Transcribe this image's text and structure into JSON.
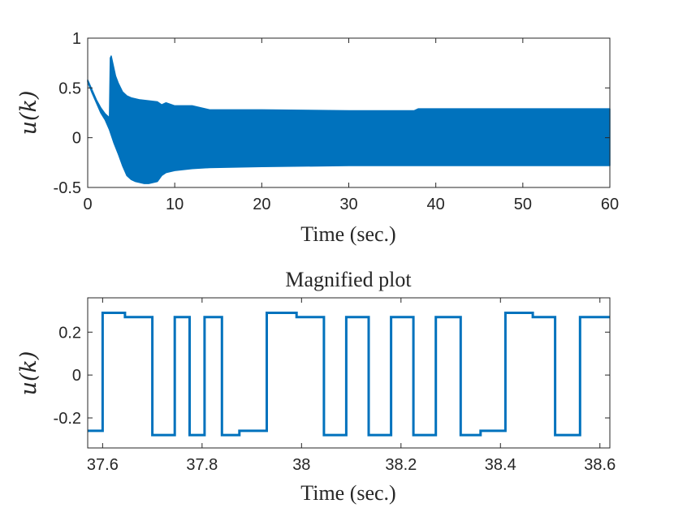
{
  "chart_data": [
    {
      "type": "line",
      "title": "",
      "xlabel": "Time (sec.)",
      "ylabel": "u(k)",
      "xlim": [
        0,
        60
      ],
      "ylim": [
        -0.5,
        1
      ],
      "xticks": [
        0,
        10,
        20,
        30,
        40,
        50,
        60
      ],
      "xtick_labels": [
        "0",
        "10",
        "20",
        "30",
        "40",
        "50",
        "60"
      ],
      "yticks": [
        1,
        0.5,
        0,
        -0.5
      ],
      "ytick_labels": [
        "1",
        "0.5",
        "0",
        "-0.5"
      ],
      "color": "#0072BD",
      "grid": false,
      "series": [
        {
          "envelope_upper": {
            "x": [
              0,
              0.5,
              1,
              1.5,
              2,
              2.5,
              2.6,
              2.7,
              2.9,
              3.2,
              3.5,
              4,
              4.5,
              5,
              5.5,
              6,
              7,
              8,
              8.5,
              9,
              10,
              12,
              13,
              14,
              20,
              30,
              37.5,
              38,
              45,
              50,
              55,
              60
            ],
            "y": [
              0.58,
              0.48,
              0.38,
              0.3,
              0.24,
              0.2,
              0.8,
              0.82,
              0.74,
              0.62,
              0.55,
              0.46,
              0.42,
              0.4,
              0.39,
              0.38,
              0.37,
              0.36,
              0.33,
              0.35,
              0.32,
              0.32,
              0.3,
              0.28,
              0.28,
              0.27,
              0.27,
              0.29,
              0.29,
              0.29,
              0.29,
              0.29
            ]
          },
          "envelope_lower": {
            "x": [
              0,
              0.5,
              1,
              1.5,
              2,
              2.5,
              3,
              3.5,
              4,
              4.5,
              5,
              5.5,
              6,
              6.5,
              7,
              7.5,
              8,
              8.5,
              9,
              10,
              12,
              14,
              20,
              30,
              40,
              50,
              60
            ],
            "y": [
              0.56,
              0.45,
              0.35,
              0.25,
              0.18,
              0.08,
              -0.05,
              -0.16,
              -0.28,
              -0.38,
              -0.42,
              -0.44,
              -0.45,
              -0.46,
              -0.46,
              -0.45,
              -0.44,
              -0.38,
              -0.35,
              -0.33,
              -0.31,
              -0.3,
              -0.29,
              -0.28,
              -0.28,
              -0.28,
              -0.28
            ]
          }
        }
      ]
    },
    {
      "type": "line",
      "title": "Magnified plot",
      "xlabel": "Time (sec.)",
      "ylabel": "u(k)",
      "xlim": [
        37.57,
        38.62
      ],
      "ylim": [
        -0.34,
        0.36
      ],
      "xticks": [
        37.6,
        37.8,
        38,
        38.2,
        38.4,
        38.6
      ],
      "xtick_labels": [
        "37.6",
        "37.8",
        "38",
        "38.2",
        "38.4",
        "38.6"
      ],
      "yticks": [
        0.2,
        0,
        -0.2
      ],
      "ytick_labels": [
        "0.2",
        "0",
        "-0.2"
      ],
      "color": "#0072BD",
      "grid": false,
      "series": [
        {
          "x": [
            37.57,
            37.6,
            37.6,
            37.645,
            37.645,
            37.7,
            37.7,
            37.745,
            37.745,
            37.775,
            37.775,
            37.805,
            37.805,
            37.84,
            37.84,
            37.875,
            37.875,
            37.93,
            37.93,
            37.99,
            37.99,
            38.045,
            38.045,
            38.09,
            38.09,
            38.135,
            38.135,
            38.18,
            38.18,
            38.225,
            38.225,
            38.27,
            38.27,
            38.32,
            38.32,
            38.36,
            38.36,
            38.41,
            38.41,
            38.465,
            38.465,
            38.51,
            38.51,
            38.56,
            38.56,
            38.61,
            38.61,
            38.62
          ],
          "y": [
            -0.26,
            -0.26,
            0.29,
            0.29,
            0.27,
            0.27,
            -0.28,
            -0.28,
            0.27,
            0.27,
            -0.28,
            -0.28,
            0.27,
            0.27,
            -0.28,
            -0.28,
            -0.26,
            -0.26,
            0.29,
            0.29,
            0.27,
            0.27,
            -0.28,
            -0.28,
            0.27,
            0.27,
            -0.28,
            -0.28,
            0.27,
            0.27,
            -0.28,
            -0.28,
            0.27,
            0.27,
            -0.28,
            -0.28,
            -0.26,
            -0.26,
            0.29,
            0.29,
            0.27,
            0.27,
            -0.28,
            -0.28,
            0.27,
            0.27,
            0.27,
            0.27
          ]
        }
      ]
    }
  ]
}
